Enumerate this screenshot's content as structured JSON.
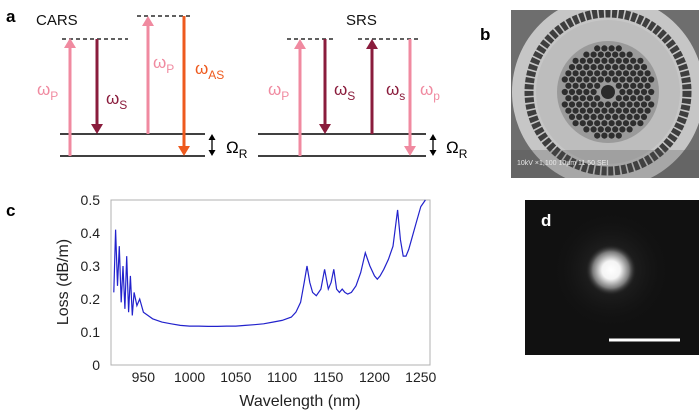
{
  "panels": {
    "a": {
      "label": "a",
      "cars": {
        "title": "CARS",
        "omega_p1": "ω",
        "omega_p1_sub": "P",
        "omega_s": "ω",
        "omega_s_sub": "S",
        "omega_p2": "ω",
        "omega_p2_sub": "P",
        "omega_as": "ω",
        "omega_as_sub": "AS",
        "omega_r": "Ω",
        "omega_r_sub": "R"
      },
      "srs": {
        "title": "SRS",
        "omega_p1": "ω",
        "omega_p1_sub": "P",
        "omega_s1": "ω",
        "omega_s1_sub": "S",
        "omega_s2": "ω",
        "omega_s2_sub": "s",
        "omega_p2": "ω",
        "omega_p2_sub": "p",
        "omega_r": "Ω",
        "omega_r_sub": "R"
      }
    },
    "b": {
      "label": "b",
      "sem_caption": "10kV ×1,100 10μm 11 50 SEI"
    },
    "c": {
      "label": "c"
    },
    "d": {
      "label": "d"
    }
  },
  "colors": {
    "pump": "#f08aa0",
    "stokes": "#8a1c3c",
    "antistokes": "#ee5a1e",
    "curve": "#2222cc"
  },
  "chart_data": {
    "type": "line",
    "xlabel": "Wavelength (nm)",
    "ylabel": "Loss (dB/m)",
    "xlim": [
      915,
      1260
    ],
    "ylim": [
      0,
      0.5
    ],
    "xticks": [
      "950",
      "1000",
      "1050",
      "1100",
      "1150",
      "1200",
      "1250"
    ],
    "xtick_values": [
      950,
      1000,
      1050,
      1100,
      1150,
      1200,
      1250
    ],
    "yticks": [
      "0",
      "0.1",
      "0.2",
      "0.3",
      "0.4",
      "0.5"
    ],
    "ytick_values": [
      0,
      0.1,
      0.2,
      0.3,
      0.4,
      0.5
    ],
    "grid": false,
    "series": [
      {
        "x": [
          918,
          920,
          922,
          924,
          926,
          928,
          930,
          932,
          934,
          936,
          938,
          940,
          943,
          946,
          950,
          955,
          960,
          965,
          970,
          980,
          990,
          1000,
          1010,
          1020,
          1030,
          1040,
          1050,
          1060,
          1070,
          1080,
          1090,
          1100,
          1110,
          1115,
          1120,
          1124,
          1127,
          1130,
          1133,
          1137,
          1142,
          1146,
          1150,
          1153,
          1156,
          1159,
          1162,
          1165,
          1168,
          1171,
          1175,
          1180,
          1185,
          1190,
          1195,
          1200,
          1203,
          1206,
          1210,
          1215,
          1220,
          1225,
          1228,
          1231,
          1234,
          1237,
          1240,
          1245,
          1250,
          1255
        ],
        "y": [
          0.22,
          0.41,
          0.24,
          0.36,
          0.19,
          0.3,
          0.17,
          0.33,
          0.16,
          0.27,
          0.15,
          0.22,
          0.18,
          0.2,
          0.16,
          0.15,
          0.14,
          0.135,
          0.13,
          0.125,
          0.12,
          0.118,
          0.118,
          0.117,
          0.117,
          0.118,
          0.118,
          0.12,
          0.122,
          0.125,
          0.13,
          0.135,
          0.145,
          0.16,
          0.19,
          0.25,
          0.3,
          0.25,
          0.22,
          0.21,
          0.23,
          0.29,
          0.23,
          0.25,
          0.29,
          0.23,
          0.22,
          0.23,
          0.22,
          0.215,
          0.22,
          0.24,
          0.28,
          0.34,
          0.3,
          0.27,
          0.26,
          0.27,
          0.29,
          0.32,
          0.36,
          0.47,
          0.38,
          0.33,
          0.33,
          0.35,
          0.38,
          0.43,
          0.48,
          0.5
        ]
      }
    ]
  }
}
